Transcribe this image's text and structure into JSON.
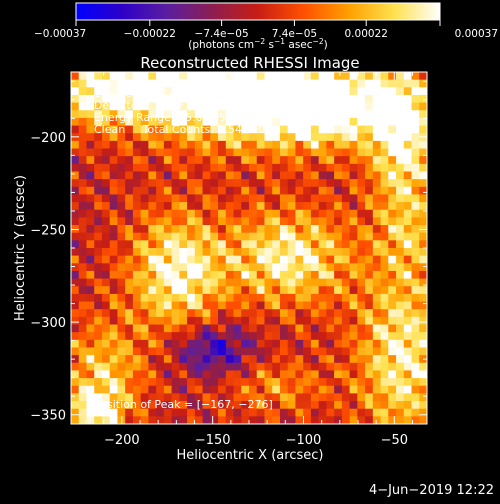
{
  "chart_data": {
    "type": "heatmap",
    "title": "Reconstructed RHESSI Image",
    "xlabel": "Heliocentric X (arcsec)",
    "ylabel": "Heliocentric Y (arcsec)",
    "xlim": [
      -228,
      -32
    ],
    "ylim": [
      -355,
      -165
    ],
    "x_ticks": [
      {
        "value": -200,
        "label": "−200"
      },
      {
        "value": -150,
        "label": "−150"
      },
      {
        "value": -100,
        "label": "−100"
      },
      {
        "value": -50,
        "label": "−50"
      }
    ],
    "y_ticks": [
      {
        "value": -200,
        "label": "−200"
      },
      {
        "value": -250,
        "label": "−250"
      },
      {
        "value": -300,
        "label": "−300"
      },
      {
        "value": -350,
        "label": "−350"
      }
    ],
    "colorbar": {
      "range": [
        -0.00037,
        0.00037
      ],
      "tick_values": [
        -0.00037,
        -0.00022,
        -7.4e-05,
        7.4e-05,
        0.00022,
        0.00037
      ],
      "tick_labels": [
        "−0.00037",
        "−0.00022",
        "−7.4e−05",
        "7.4e−05",
        "0.00022",
        "0.00037"
      ],
      "colormap": [
        "#0000ff",
        "#2d00c8",
        "#5a1ea0",
        "#8c1e50",
        "#c81e14",
        "#ff5000",
        "#ffa000",
        "#ffe150",
        "#ffffff"
      ],
      "unit_label_parts": [
        "(photons cm",
        "−2",
        " s",
        "−1",
        " asec",
        "−2",
        ")"
      ]
    },
    "annotations": [
      "14−Nov−2014 18:51:20.000 to 18:56:40.000",
      "Detectors: 3F 6F 9F, Att 0",
      "Energy Range: 25.0 − 50.0 keV",
      "Clean     Total Counts: 3.54E+03",
      "Position of Peak = [−167, −276]"
    ],
    "peak": {
      "x": -167,
      "y": -276
    },
    "sources": [
      {
        "x": -175,
        "y": -172,
        "sx": 40,
        "sy": 14,
        "amp": 0.00033
      },
      {
        "x": -125,
        "y": -182,
        "sx": 45,
        "sy": 18,
        "amp": 0.00035
      },
      {
        "x": -85,
        "y": -183,
        "sx": 28,
        "sy": 14,
        "amp": 0.0003
      },
      {
        "x": -45,
        "y": -205,
        "sx": 13,
        "sy": 30,
        "amp": 0.00033
      },
      {
        "x": -215,
        "y": -178,
        "sx": 14,
        "sy": 12,
        "amp": 0.00018
      },
      {
        "x": -170,
        "y": -273,
        "sx": 18,
        "sy": 22,
        "amp": 0.00036
      },
      {
        "x": -108,
        "y": -265,
        "sx": 24,
        "sy": 18,
        "amp": 0.00034
      },
      {
        "x": -210,
        "y": -328,
        "sx": 16,
        "sy": 20,
        "amp": 0.00025
      },
      {
        "x": -215,
        "y": -348,
        "sx": 10,
        "sy": 8,
        "amp": 0.0003
      },
      {
        "x": -45,
        "y": -318,
        "sx": 18,
        "sy": 34,
        "amp": 0.00033
      },
      {
        "x": -115,
        "y": -335,
        "sx": 20,
        "sy": 10,
        "amp": 0.00016
      },
      {
        "x": -150,
        "y": -315,
        "sx": 15,
        "sy": 10,
        "amp": -0.00026
      },
      {
        "x": -40,
        "y": -255,
        "sx": 12,
        "sy": 14,
        "amp": 0.00012
      }
    ]
  },
  "footer": {
    "date": "4−Jun−2019 12:22"
  }
}
